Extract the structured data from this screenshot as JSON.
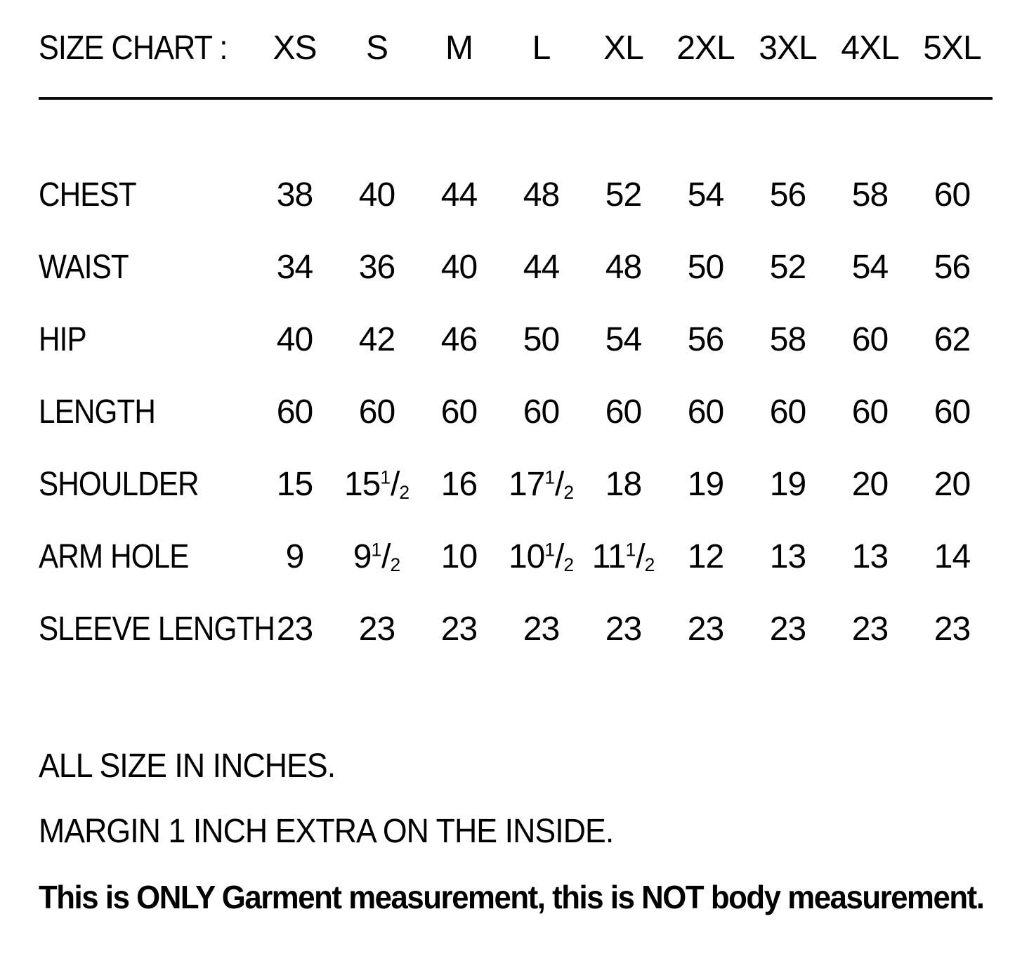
{
  "chart_data": {
    "type": "table",
    "title": "SIZE CHART :",
    "units": "inches",
    "columns": [
      "XS",
      "S",
      "M",
      "L",
      "XL",
      "2XL",
      "3XL",
      "4XL",
      "5XL"
    ],
    "rows": [
      {
        "label": "CHEST",
        "values": [
          "38",
          "40",
          "44",
          "48",
          "52",
          "54",
          "56",
          "58",
          "60"
        ]
      },
      {
        "label": "WAIST",
        "values": [
          "34",
          "36",
          "40",
          "44",
          "48",
          "50",
          "52",
          "54",
          "56"
        ]
      },
      {
        "label": "HIP",
        "values": [
          "40",
          "42",
          "46",
          "50",
          "54",
          "56",
          "58",
          "60",
          "62"
        ]
      },
      {
        "label": "LENGTH",
        "values": [
          "60",
          "60",
          "60",
          "60",
          "60",
          "60",
          "60",
          "60",
          "60"
        ]
      },
      {
        "label": "SHOULDER",
        "values": [
          "15",
          "15 1/2",
          "16",
          "17 1/2",
          "18",
          "19",
          "19",
          "20",
          "20"
        ]
      },
      {
        "label": "ARM HOLE",
        "values": [
          "9",
          "9 1/2",
          "10",
          "10 1/2",
          "11 1/2",
          "12",
          "13",
          "13",
          "14"
        ]
      },
      {
        "label": "SLEEVE LENGTH",
        "values": [
          "23",
          "23",
          "23",
          "23",
          "23",
          "23",
          "23",
          "23",
          "23"
        ]
      }
    ],
    "notes": [
      "ALL SIZE IN INCHES.",
      "MARGIN 1 INCH EXTRA ON THE INSIDE.",
      "This is ONLY Garment measurement, this is NOT body measurement."
    ],
    "layout": {
      "text_color": "#000000",
      "background_color": "#ffffff",
      "header_rule": true
    }
  }
}
